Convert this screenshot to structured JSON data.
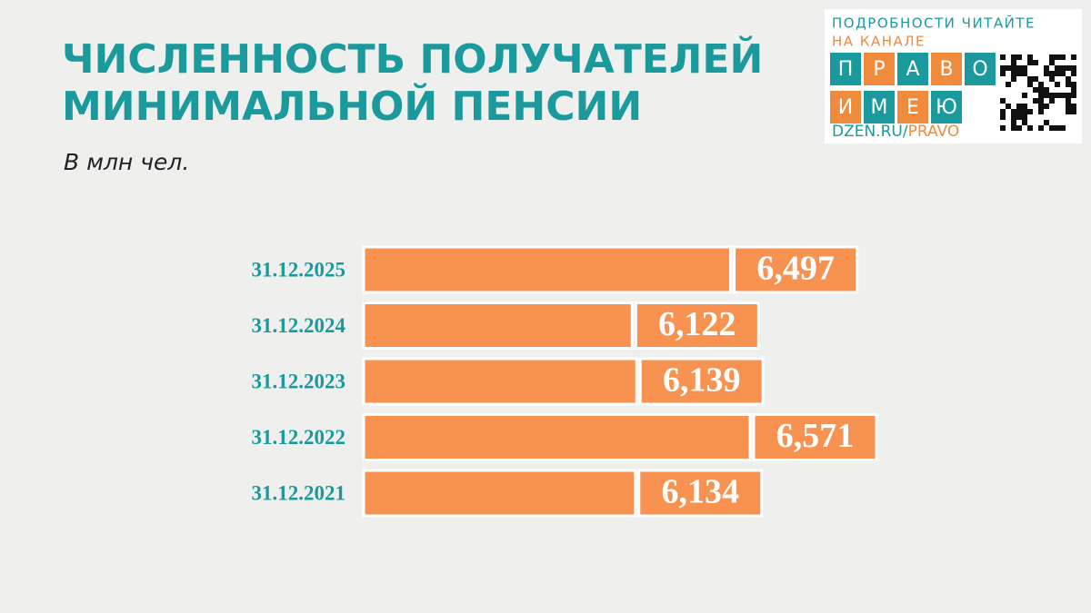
{
  "chart_data": {
    "type": "bar",
    "orientation": "horizontal",
    "title": [
      "ЧИСЛЕННОСТЬ ПОЛУЧАТЕЛЕЙ",
      "МИНИМАЛЬНОЙ ПЕНСИИ"
    ],
    "subtitle": "В млн чел.",
    "categories": [
      "31.12.2025",
      "31.12.2024",
      "31.12.2023",
      "31.12.2022",
      "31.12.2021"
    ],
    "values": [
      6.497,
      6.122,
      6.139,
      6.571,
      6.134
    ],
    "value_labels": [
      "6,497",
      "6,122",
      "6,139",
      "6,571",
      "6,134"
    ],
    "color": "#f79250",
    "xlim": [
      5.1,
      7.0
    ]
  },
  "logo": {
    "line1": "ПОДРОБНОСТИ ЧИТАЙТЕ",
    "line2": "НА КАНАЛЕ",
    "word1": [
      "П",
      "Р",
      "А",
      "В",
      "О"
    ],
    "word2": [
      "И",
      "М",
      "Е",
      "Ю"
    ],
    "url": "DZEN.RU/",
    "url_end": "PRAVO"
  }
}
